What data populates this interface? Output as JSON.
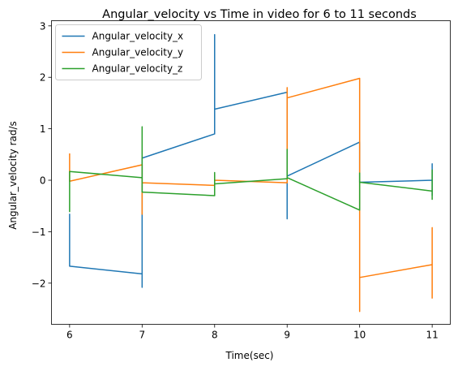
{
  "chart_data": {
    "type": "line",
    "title": "Angular_velocity vs Time in video for 6 to 11 seconds",
    "xlabel": "Time(sec)",
    "ylabel": "Angular_velocity rad/s",
    "xlim": [
      5.75,
      11.25
    ],
    "ylim": [
      -2.8,
      3.1
    ],
    "xticks": [
      6,
      7,
      8,
      9,
      10,
      11
    ],
    "yticks": [
      -2,
      -1,
      0,
      1,
      2,
      3
    ],
    "xtick_labels": [
      "6",
      "7",
      "8",
      "9",
      "10",
      "11"
    ],
    "ytick_labels": [
      "−2",
      "−1",
      "0",
      "1",
      "2",
      "3"
    ],
    "grid": false,
    "legend_position": "top-left",
    "series": [
      {
        "name": "Angular_velocity_x",
        "color": "#1f77b4",
        "points": [
          [
            6.0,
            -0.65
          ],
          [
            6.0,
            -1.67
          ],
          [
            7.0,
            -1.82
          ],
          [
            7.0,
            -2.08
          ],
          [
            7.0,
            -0.68
          ],
          [
            7.0,
            0.43
          ],
          [
            8.0,
            0.9
          ],
          [
            8.0,
            2.83
          ],
          [
            8.0,
            1.38
          ],
          [
            9.0,
            1.71
          ],
          [
            9.0,
            -0.75
          ],
          [
            9.0,
            0.08
          ],
          [
            10.0,
            0.74
          ],
          [
            10.0,
            -0.04
          ],
          [
            11.0,
            0.0
          ],
          [
            11.0,
            0.32
          ],
          [
            11.0,
            -0.3
          ]
        ]
      },
      {
        "name": "Angular_velocity_y",
        "color": "#ff7f0e",
        "points": [
          [
            6.0,
            0.52
          ],
          [
            6.0,
            -0.02
          ],
          [
            7.0,
            0.3
          ],
          [
            7.0,
            -0.66
          ],
          [
            7.0,
            -0.05
          ],
          [
            8.0,
            -0.1
          ],
          [
            8.0,
            0.1
          ],
          [
            8.0,
            0.0
          ],
          [
            9.0,
            -0.05
          ],
          [
            9.0,
            1.8
          ],
          [
            9.0,
            1.6
          ],
          [
            10.0,
            1.98
          ],
          [
            10.0,
            -2.55
          ],
          [
            10.0,
            -1.89
          ],
          [
            11.0,
            -1.64
          ],
          [
            11.0,
            -0.92
          ],
          [
            11.0,
            -2.3
          ]
        ]
      },
      {
        "name": "Angular_velocity_z",
        "color": "#2ca02c",
        "points": [
          [
            6.0,
            -0.62
          ],
          [
            6.0,
            0.17
          ],
          [
            7.0,
            0.05
          ],
          [
            7.0,
            1.04
          ],
          [
            7.0,
            -0.23
          ],
          [
            8.0,
            -0.3
          ],
          [
            8.0,
            0.15
          ],
          [
            8.0,
            -0.07
          ],
          [
            9.0,
            0.03
          ],
          [
            9.0,
            0.6
          ],
          [
            9.0,
            0.05
          ],
          [
            10.0,
            -0.58
          ],
          [
            10.0,
            0.14
          ],
          [
            10.0,
            -0.04
          ],
          [
            11.0,
            -0.21
          ],
          [
            11.0,
            0.2
          ],
          [
            11.0,
            -0.38
          ]
        ]
      }
    ]
  }
}
